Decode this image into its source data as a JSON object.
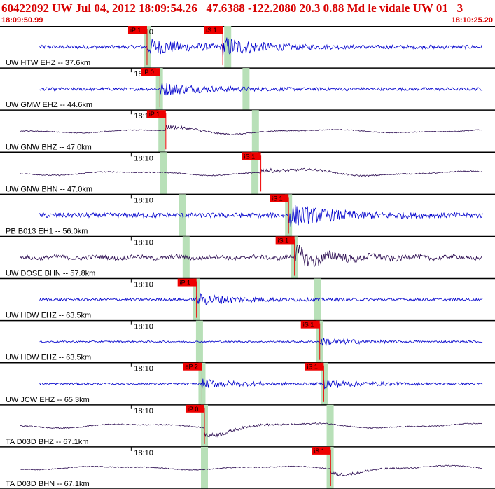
{
  "header": {
    "title": "60422092 UW Jul 04, 2012 18:09:54.26   47.6388 -122.2080 20.3 0.88 Md le vidale UW 01   3",
    "start_time": "18:09:50.99",
    "end_time": "18:10:25.20"
  },
  "chart_data": {
    "type": "line",
    "title": "60422092 UW Jul 04, 2012 18:09:54.26 47.6388 -122.2080 20.3 0.88 Md le vidale UW 01 3",
    "x_range": [
      "18:09:50.99",
      "18:10:25.20"
    ],
    "minute_tick_label": "18:10",
    "colors": {
      "blue": "#0000cc",
      "purple": "#2a0a50",
      "pick": "#ee0000",
      "window": "#b8e0b8",
      "axis": "#000000"
    },
    "traces": [
      {
        "label": "UW HTW EHZ -- 37.6km",
        "color": "blue",
        "picks": [
          {
            "label": "iP 1",
            "t": 0.297
          },
          {
            "label": "iS 1",
            "t": 0.45
          }
        ],
        "green": [
          0.298,
          0.46
        ],
        "wave": "hf",
        "amp": 0.55
      },
      {
        "label": "UW GMW EHZ -- 44.6km",
        "color": "blue",
        "picks": [
          {
            "label": "iP 0",
            "t": 0.323
          }
        ],
        "green": [
          0.322,
          0.497
        ],
        "wave": "hf",
        "amp": 0.45
      },
      {
        "label": "UW GNW BHZ -- 47.0km",
        "color": "purple",
        "picks": [
          {
            "label": "iP 1",
            "t": 0.335
          }
        ],
        "green": [
          0.327,
          0.516
        ],
        "wave": "lf",
        "amp": 0.45
      },
      {
        "label": "UW GNW BHN -- 47.0km",
        "color": "purple",
        "picks": [
          {
            "label": "iS 1",
            "t": 0.527
          }
        ],
        "green": [
          0.33,
          0.515
        ],
        "wave": "lf",
        "amp": 0.55
      },
      {
        "label": "PB B013 EH1 -- 56.0km",
        "color": "blue",
        "picks": [
          {
            "label": "iS 1",
            "t": 0.583
          }
        ],
        "green": [
          0.368,
          0.583
        ],
        "wave": "hf",
        "amp": 0.75
      },
      {
        "label": "UW DOSE BHN -- 57.8km",
        "color": "purple",
        "picks": [
          {
            "label": "iS 1",
            "t": 0.595
          }
        ],
        "green": [
          0.376,
          0.595
        ],
        "wave": "mf",
        "amp": 0.65
      },
      {
        "label": "UW HDW EHZ -- 63.5km",
        "color": "blue",
        "picks": [
          {
            "label": "iP 1",
            "t": 0.397
          }
        ],
        "green": [
          0.397,
          0.641
        ],
        "wave": "hf",
        "amp": 0.4
      },
      {
        "label": "UW HDW EHZ -- 63.5km",
        "color": "blue",
        "picks": [
          {
            "label": "iS 1",
            "t": 0.646
          }
        ],
        "green": [
          0.403,
          0.646
        ],
        "wave": "hf",
        "amp": 0.25
      },
      {
        "label": "UW JCW EHZ -- 65.3km",
        "color": "blue",
        "picks": [
          {
            "label": "eP 2",
            "t": 0.408
          },
          {
            "label": "iS 1",
            "t": 0.654
          }
        ],
        "green": [
          0.408,
          0.656
        ],
        "wave": "hf",
        "amp": 0.3
      },
      {
        "label": "TA D03D BHZ -- 67.1km",
        "color": "purple",
        "picks": [
          {
            "label": "iP 0",
            "t": 0.413
          }
        ],
        "green": [
          0.413,
          0.667
        ],
        "wave": "lf",
        "amp": 0.6
      },
      {
        "label": "TA D03D BHN -- 67.1km",
        "color": "purple",
        "picks": [
          {
            "label": "iS 1",
            "t": 0.668
          }
        ],
        "green": [
          0.413,
          0.667
        ],
        "wave": "lf",
        "amp": 0.5
      }
    ]
  }
}
